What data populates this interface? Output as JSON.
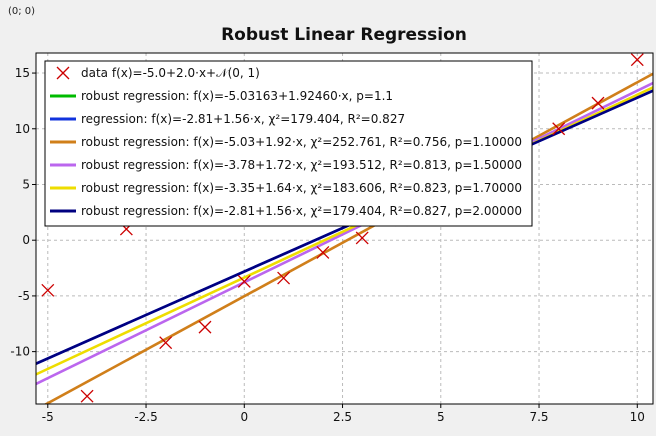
{
  "coordinate_readout": "(0; 0)",
  "chart_data": {
    "type": "scatter",
    "title": "Robust Linear Regression",
    "xlabel": "",
    "ylabel": "",
    "xlim": [
      -5.3,
      10.4
    ],
    "ylim": [
      -14.7,
      16.8
    ],
    "x_ticks": [
      -5,
      -2.5,
      0,
      2.5,
      5,
      7.5,
      10
    ],
    "x_tick_labels": [
      "-5",
      "-2.5",
      "0",
      "2.5",
      "5",
      "7.5",
      "10"
    ],
    "y_ticks": [
      -10,
      -5,
      0,
      5,
      10,
      15
    ],
    "y_tick_labels": [
      "-10",
      "-5",
      "0",
      "5",
      "10",
      "15"
    ],
    "grid": true,
    "legend_position": "top-left",
    "points": {
      "name": "data f(x)=-5.0+2.0·x+𝒩(0, 1)",
      "color": "#cc0000",
      "x": [
        -5,
        -4,
        -3,
        -2,
        -1,
        0,
        1,
        2,
        3,
        4,
        5,
        6,
        7,
        8,
        9,
        10
      ],
      "y": [
        -4.5,
        -14,
        1.0,
        -9.2,
        -7.8,
        -3.7,
        -3.4,
        -1.1,
        0.2,
        1.8,
        4.5,
        6.5,
        8.0,
        10.0,
        12.3,
        16.2
      ]
    },
    "series": [
      {
        "name": "robust regression: f(x)=-5.03163+1.92460·x, p=1.1",
        "color": "#00bb00",
        "intercept": -5.03163,
        "slope": 1.9246,
        "show_line": false
      },
      {
        "name": "regression: f(x)=-2.81+1.56·x, χ²=179.404, R²=0.827",
        "color": "#1133dd",
        "intercept": -2.81,
        "slope": 1.56,
        "show_line": true
      },
      {
        "name": "robust regression: f(x)=-5.03+1.92·x, χ²=252.761, R²=0.756, p=1.10000",
        "color": "#d07f1a",
        "intercept": -5.03,
        "slope": 1.92,
        "show_line": true
      },
      {
        "name": "robust regression: f(x)=-3.78+1.72·x, χ²=193.512, R²=0.813, p=1.50000",
        "color": "#bb66ee",
        "intercept": -3.78,
        "slope": 1.72,
        "show_line": true
      },
      {
        "name": "robust regression: f(x)=-3.35+1.64·x, χ²=183.606, R²=0.823, p=1.70000",
        "color": "#eedd00",
        "intercept": -3.35,
        "slope": 1.64,
        "show_line": true
      },
      {
        "name": "robust regression: f(x)=-2.81+1.56·x, χ²=179.404, R²=0.827, p=2.00000",
        "color": "#000080",
        "intercept": -2.81,
        "slope": 1.56,
        "show_line": true
      }
    ]
  }
}
